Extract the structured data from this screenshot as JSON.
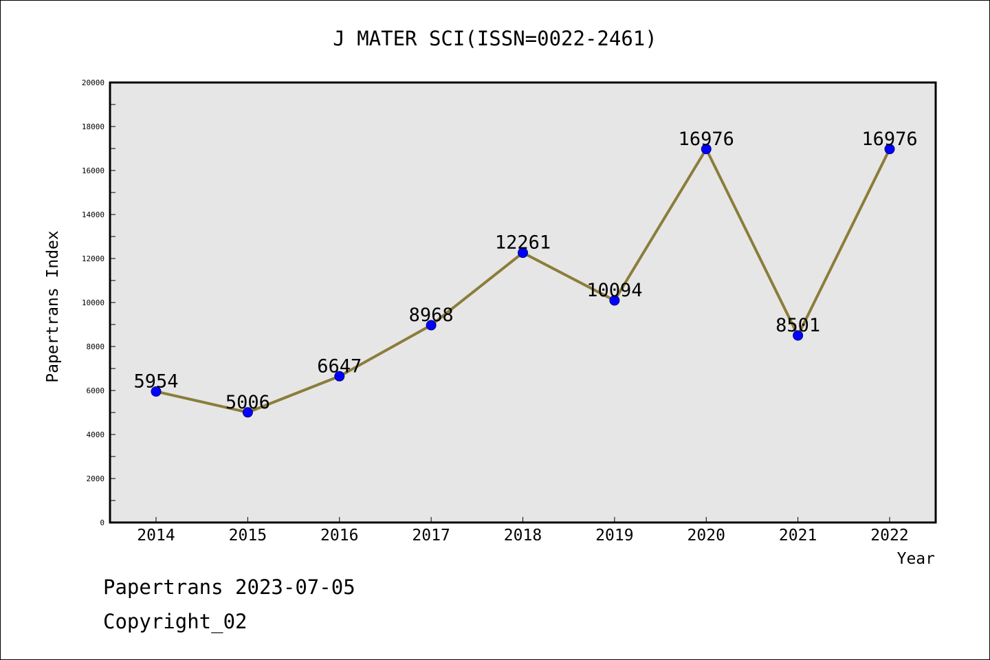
{
  "chart_data": {
    "type": "line",
    "title": "J MATER SCI(ISSN=0022-2461)",
    "xlabel": "Year",
    "ylabel": "Papertrans Index",
    "categories": [
      "2014",
      "2015",
      "2016",
      "2017",
      "2018",
      "2019",
      "2020",
      "2021",
      "2022"
    ],
    "values": [
      5954,
      5006,
      6647,
      8968,
      12261,
      10094,
      16976,
      8501,
      16976
    ],
    "data_labels": [
      "5954",
      "5006",
      "6647",
      "8968",
      "12261",
      "10094",
      "16976",
      "8501",
      "16976"
    ],
    "ylim": [
      0,
      20000
    ],
    "yticks": [
      0,
      2000,
      4000,
      6000,
      8000,
      10000,
      12000,
      14000,
      16000,
      18000,
      20000
    ],
    "ytick_labels": [
      "0",
      "2000",
      "4000",
      "6000",
      "8000",
      "10000",
      "12000",
      "14000",
      "16000",
      "18000",
      "20000"
    ],
    "grid": false,
    "colors": {
      "line": "#8B7D3A",
      "marker_fill": "#0000FF",
      "marker_edge": "#000080",
      "plot_background": "#E6E6E6"
    }
  },
  "footer": {
    "line1": "Papertrans 2023-07-05",
    "line2": "Copyright_02"
  }
}
